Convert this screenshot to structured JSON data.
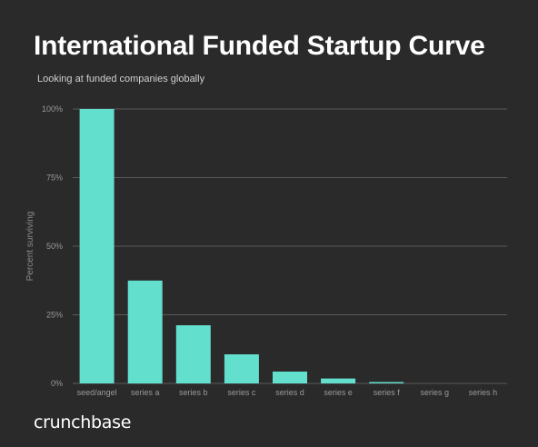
{
  "header": {
    "title": "International Funded Startup Curve",
    "subtitle": "Looking at funded companies globally"
  },
  "footer": {
    "brand": "crunchbase"
  },
  "colors": {
    "background": "#2a2a2a",
    "bar": "#63dfcd",
    "grid": "#5a5a5a",
    "tick_text": "#9a9a9a"
  },
  "chart_data": {
    "type": "bar",
    "title": "International Funded Startup Curve",
    "subtitle": "Looking at funded companies globally",
    "xlabel": "",
    "ylabel": "Percent surviving",
    "categories": [
      "seed/angel",
      "series a",
      "series b",
      "series c",
      "series d",
      "series e",
      "series f",
      "series g",
      "series h"
    ],
    "values": [
      100,
      37.5,
      21.2,
      10.6,
      4.3,
      1.8,
      0.5,
      0.1,
      0.05
    ],
    "ylim": [
      0,
      100
    ],
    "yticks": [
      "0%",
      "25%",
      "50%",
      "75%",
      "100%"
    ],
    "ytick_values": [
      0,
      25,
      50,
      75,
      100
    ],
    "grid": true,
    "legend": "none"
  }
}
